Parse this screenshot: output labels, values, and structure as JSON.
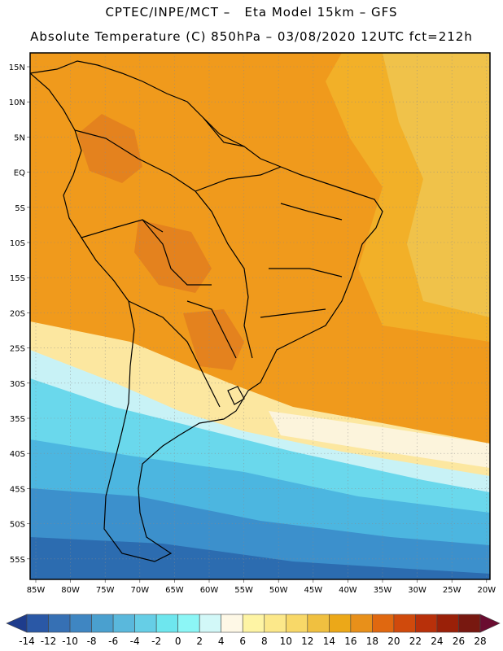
{
  "header": {
    "line1": "CPTEC/INPE/MCT –   Eta Model 15km – GFS",
    "line2": "Absolute Temperature (C) 850hPa – 03/08/2020 12UTC fct=212h"
  },
  "map": {
    "lat_labels": [
      "15N",
      "10N",
      "5N",
      "EQ",
      "5S",
      "10S",
      "15S",
      "20S",
      "25S",
      "30S",
      "35S",
      "40S",
      "45S",
      "50S",
      "55S"
    ],
    "lon_labels": [
      "85W",
      "80W",
      "75W",
      "70W",
      "65W",
      "60W",
      "55W",
      "50W",
      "45W",
      "40W",
      "35W",
      "30W",
      "25W",
      "20W"
    ]
  },
  "colorbar": {
    "labels": [
      "-14",
      "-12",
      "-10",
      "-8",
      "-6",
      "-4",
      "-2",
      "0",
      "2",
      "4",
      "6",
      "8",
      "10",
      "12",
      "14",
      "16",
      "18",
      "20",
      "22",
      "24",
      "26",
      "28"
    ],
    "colors": [
      "#1e3c8c",
      "#2a58a6",
      "#3670b4",
      "#3f86c2",
      "#4aa0cf",
      "#5ab8dc",
      "#66cee6",
      "#6ee6ee",
      "#8cf6f6",
      "#d2f8f8",
      "#fef8e6",
      "#fef4a4",
      "#fce88a",
      "#f8d868",
      "#f0c040",
      "#eca818",
      "#e8901a",
      "#e06810",
      "#d04a0c",
      "#b8300a",
      "#9a2008",
      "#781810",
      "#6a0c30"
    ]
  },
  "palette": {
    "orange_hot": "#e4821e",
    "orange": "#f09a1c",
    "amber": "#f2b028",
    "gold": "#f0c24a",
    "light_yellow": "#fce7a0",
    "cream": "#fcf4dc",
    "ice": "#c8f2f6",
    "cyan": "#6ad8ec",
    "sky": "#4cb6e0",
    "blue": "#3c90cc",
    "deep_blue": "#2c6cb0"
  }
}
